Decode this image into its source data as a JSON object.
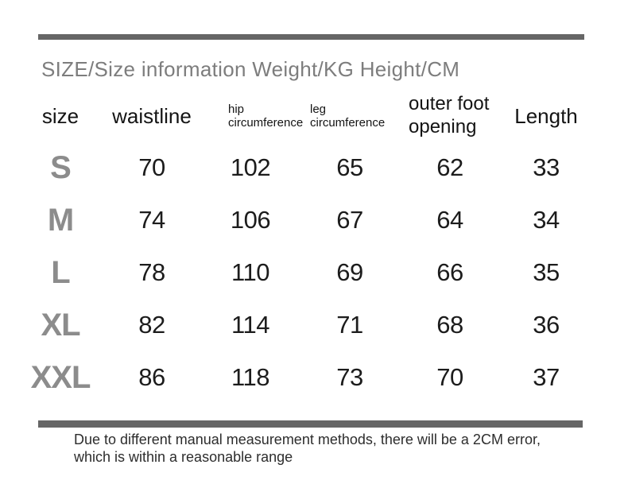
{
  "colors": {
    "bar_gray": "#666666",
    "title_gray": "#7d7d7d",
    "size_label_gray": "#8c8c8c",
    "number_black": "#1c1c1c",
    "background": "#ffffff"
  },
  "title": "SIZE/Size information Weight/KG Height/CM",
  "table": {
    "headers": {
      "size": "size",
      "waistline": "waistline",
      "hip_line1": "hip",
      "hip_line2": "circumference",
      "leg_line1": "leg",
      "leg_line2": "circumference",
      "outer_line1": "outer foot",
      "outer_line2": "opening",
      "length": "Length"
    },
    "rows": [
      {
        "size": "S",
        "values": [
          "70",
          "102",
          "65",
          "62",
          "33"
        ]
      },
      {
        "size": "M",
        "values": [
          "74",
          "106",
          "67",
          "64",
          "34"
        ]
      },
      {
        "size": "L",
        "values": [
          "78",
          "110",
          "69",
          "66",
          "35"
        ]
      },
      {
        "size": "XL",
        "values": [
          "82",
          "114",
          "71",
          "68",
          "36"
        ]
      },
      {
        "size": "XXL",
        "values": [
          "86",
          "118",
          "73",
          "70",
          "37"
        ]
      }
    ]
  },
  "footer": {
    "line1": "Due to different manual measurement methods, there will be a 2CM error,",
    "line2": "which is within a reasonable range"
  }
}
